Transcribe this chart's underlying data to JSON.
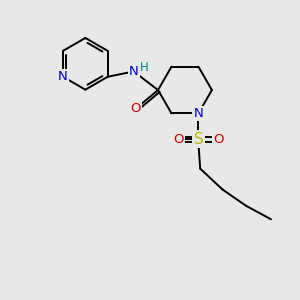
{
  "background_color": "#e8e8e8",
  "figure_size": [
    3.0,
    3.0
  ],
  "dpi": 100,
  "atom_colors": {
    "N": "#0000cc",
    "O": "#cc0000",
    "S": "#bbbb00",
    "C": "#000000",
    "H": "#008080"
  },
  "bond_color": "#000000",
  "bond_width": 1.4,
  "font_size_atoms": 9.5,
  "font_size_H": 8.5,
  "xlim": [
    0.5,
    7.5
  ],
  "ylim": [
    0.3,
    8.5
  ]
}
